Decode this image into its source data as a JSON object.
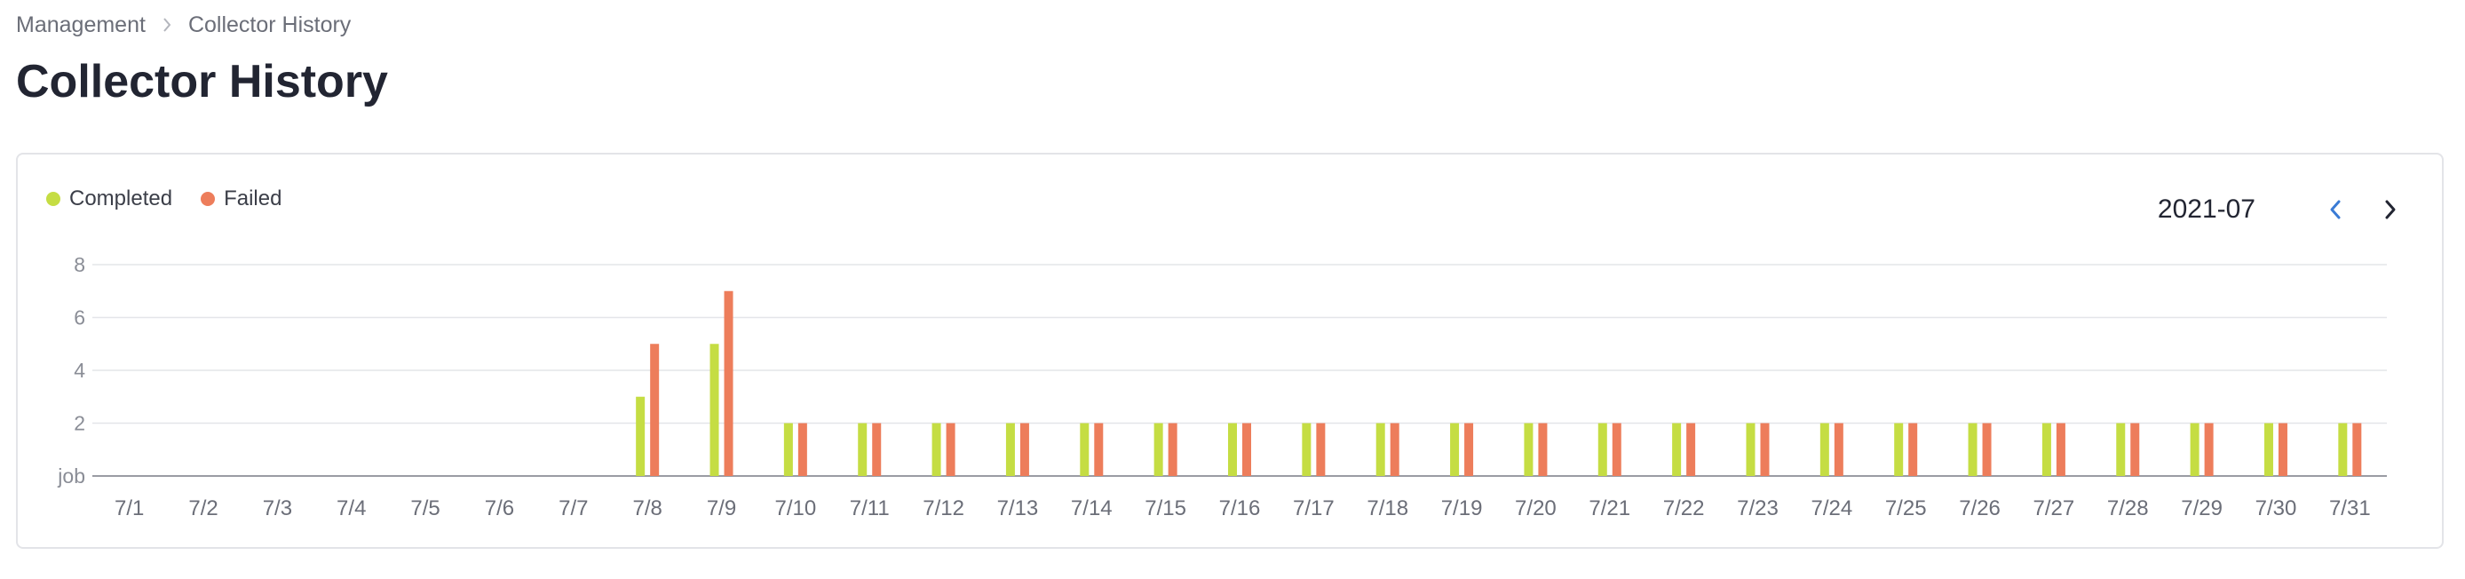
{
  "breadcrumb": {
    "items": [
      "Management",
      "Collector History"
    ]
  },
  "page": {
    "title": "Collector History"
  },
  "legend": {
    "items": [
      {
        "label": "Completed",
        "color": "#c5dd43"
      },
      {
        "label": "Failed",
        "color": "#ed7d5b"
      }
    ]
  },
  "month_nav": {
    "value": "2021-07",
    "prev_icon": "chevron-left-icon",
    "next_icon": "chevron-right-icon",
    "prev_color": "#3a7bd5",
    "next_color": "#222532"
  },
  "chart_data": {
    "type": "bar",
    "categories": [
      "7/1",
      "7/2",
      "7/3",
      "7/4",
      "7/5",
      "7/6",
      "7/7",
      "7/8",
      "7/9",
      "7/10",
      "7/11",
      "7/12",
      "7/13",
      "7/14",
      "7/15",
      "7/16",
      "7/17",
      "7/18",
      "7/19",
      "7/20",
      "7/21",
      "7/22",
      "7/23",
      "7/24",
      "7/25",
      "7/26",
      "7/27",
      "7/28",
      "7/29",
      "7/30",
      "7/31"
    ],
    "series": [
      {
        "name": "Completed",
        "color": "#c5dd43",
        "values": [
          0,
          0,
          0,
          0,
          0,
          0,
          0,
          3,
          5,
          2,
          2,
          2,
          2,
          2,
          2,
          2,
          2,
          2,
          2,
          2,
          2,
          2,
          2,
          2,
          2,
          2,
          2,
          2,
          2,
          2,
          2
        ]
      },
      {
        "name": "Failed",
        "color": "#ed7d5b",
        "values": [
          0,
          0,
          0,
          0,
          0,
          0,
          0,
          5,
          7,
          2,
          2,
          2,
          2,
          2,
          2,
          2,
          2,
          2,
          2,
          2,
          2,
          2,
          2,
          2,
          2,
          2,
          2,
          2,
          2,
          2,
          2
        ]
      }
    ],
    "y_ticks": [
      "job",
      "2",
      "4",
      "6",
      "8"
    ],
    "ylim": [
      0,
      8
    ],
    "grid": true,
    "legend_position": "top-left"
  }
}
